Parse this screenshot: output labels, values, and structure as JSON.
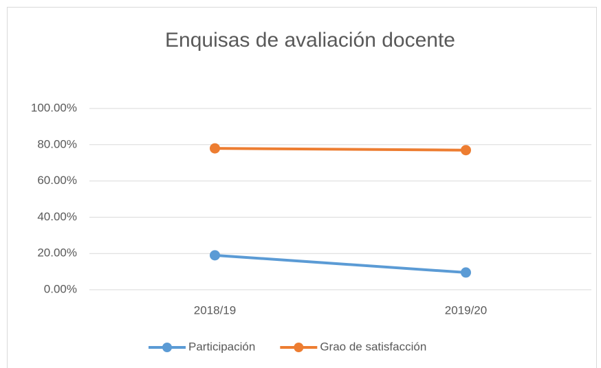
{
  "chart_data": {
    "type": "line",
    "title": "Enquisas de avaliación docente",
    "categories": [
      "2018/19",
      "2019/20"
    ],
    "series": [
      {
        "name": "Participación",
        "color": "#5b9bd5",
        "values": [
          19,
          9.5
        ]
      },
      {
        "name": "Grao de satisfacción",
        "color": "#ed7d31",
        "values": [
          78,
          77
        ]
      }
    ],
    "ylim": [
      0,
      100
    ],
    "yticks": [
      {
        "value": 0,
        "label": "0.00%"
      },
      {
        "value": 20,
        "label": "20.00%"
      },
      {
        "value": 40,
        "label": "40.00%"
      },
      {
        "value": 60,
        "label": "60.00%"
      },
      {
        "value": 80,
        "label": "80.00%"
      },
      {
        "value": 100,
        "label": "100.00%"
      }
    ],
    "grid": true,
    "legend": "bottom"
  }
}
